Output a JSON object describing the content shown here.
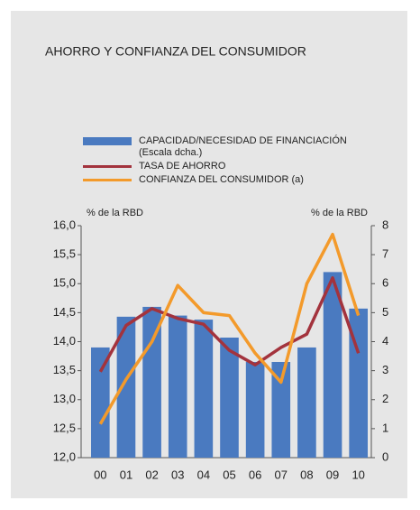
{
  "chart_data": {
    "type": "bar-line",
    "title": "AHORRO Y CONFIANZA DEL CONSUMIDOR",
    "y_label": "% de la RBD",
    "y2_label": "% de la RBD",
    "categories": [
      "00",
      "01",
      "02",
      "03",
      "04",
      "05",
      "06",
      "07",
      "08",
      "09",
      "10"
    ],
    "series": [
      {
        "name": "CAPACIDAD/NECESIDAD DE FINANCIACIÓN\n(Escala dcha.)",
        "type": "bar",
        "axis": "y2",
        "color": "#4a7ac0",
        "values": [
          3.8,
          4.86,
          5.2,
          4.9,
          4.76,
          4.14,
          3.3,
          3.3,
          3.8,
          6.4,
          5.14
        ]
      },
      {
        "name": "TASA DE AHORRO",
        "type": "line",
        "color": "#a3333d",
        "values": [
          13.48,
          14.28,
          14.57,
          14.4,
          14.3,
          13.85,
          13.6,
          13.9,
          14.13,
          15.1,
          13.8
        ]
      },
      {
        "name": "CONFIANZA DEL CONSUMIDOR (a)",
        "type": "line",
        "color": "#f39a2b",
        "values": [
          12.58,
          13.35,
          14.0,
          14.97,
          14.5,
          14.45,
          13.8,
          13.3,
          15.0,
          15.85,
          14.45
        ]
      }
    ],
    "ylim": [
      12,
      16
    ],
    "yticks": [
      {
        "value": 12,
        "label": "12,0"
      },
      {
        "value": 12.5,
        "label": "12,5"
      },
      {
        "value": 13,
        "label": "13,0"
      },
      {
        "value": 13.5,
        "label": "13,5"
      },
      {
        "value": 14,
        "label": "14,0"
      },
      {
        "value": 14.5,
        "label": "14,5"
      },
      {
        "value": 15,
        "label": "15,0"
      },
      {
        "value": 15.5,
        "label": "15,5"
      },
      {
        "value": 16,
        "label": "16,0"
      }
    ],
    "y2lim": [
      0,
      8
    ],
    "y2ticks": [
      0,
      1,
      2,
      3,
      4,
      5,
      6,
      7,
      8
    ]
  }
}
